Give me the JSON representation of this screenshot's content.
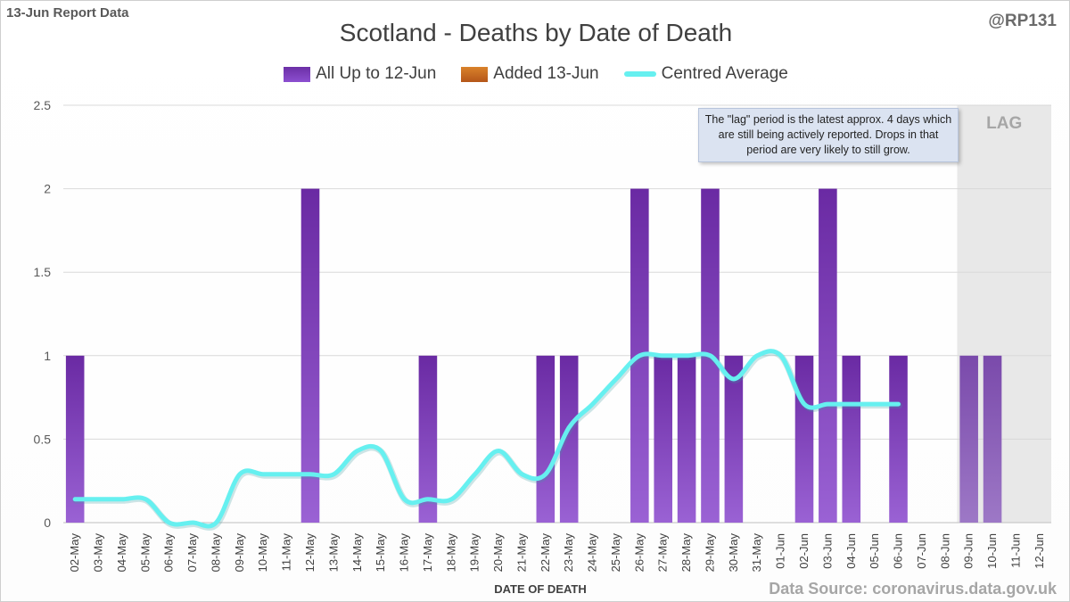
{
  "header": {
    "report_label": "13-Jun Report Data",
    "handle": "@RP131",
    "source": "Data Source: coronavirus.data.gov.uk"
  },
  "chart_data": {
    "type": "bar",
    "title": "Scotland - Deaths by Date of Death",
    "xlabel": "DATE OF DEATH",
    "ylabel": "",
    "ylim": [
      0,
      2.5
    ],
    "yticks": [
      0,
      0.5,
      1,
      1.5,
      2,
      2.5
    ],
    "ytick_labels": [
      "0",
      "0.5",
      "1",
      "1.5",
      "2",
      "2.5"
    ],
    "grid": true,
    "legend_position": "top-center",
    "categories": [
      "02-May",
      "03-May",
      "04-May",
      "05-May",
      "06-May",
      "07-May",
      "08-May",
      "09-May",
      "10-May",
      "11-May",
      "12-May",
      "13-May",
      "14-May",
      "15-May",
      "16-May",
      "17-May",
      "18-May",
      "19-May",
      "20-May",
      "21-May",
      "22-May",
      "23-May",
      "24-May",
      "25-May",
      "26-May",
      "27-May",
      "28-May",
      "29-May",
      "30-May",
      "31-May",
      "01-Jun",
      "02-Jun",
      "03-Jun",
      "04-Jun",
      "05-Jun",
      "06-Jun",
      "07-Jun",
      "08-Jun",
      "09-Jun",
      "10-Jun",
      "11-Jun",
      "12-Jun"
    ],
    "series": [
      {
        "name": "All Up to 12-Jun",
        "type": "bar",
        "color": "#7030a0",
        "values": [
          1,
          0,
          0,
          0,
          0,
          0,
          0,
          0,
          0,
          0,
          2,
          0,
          0,
          0,
          0,
          1,
          0,
          0,
          0,
          0,
          1,
          1,
          0,
          0,
          2,
          1,
          1,
          2,
          1,
          0,
          0,
          1,
          2,
          1,
          0,
          1,
          0,
          0,
          1,
          1,
          0,
          0
        ]
      },
      {
        "name": "Added 13-Jun",
        "type": "bar",
        "color": "#c55a11",
        "values": [
          0,
          0,
          0,
          0,
          0,
          0,
          0,
          0,
          0,
          0,
          0,
          0,
          0,
          0,
          0,
          0,
          0,
          0,
          0,
          0,
          0,
          0,
          0,
          0,
          0,
          0,
          0,
          0,
          0,
          0,
          0,
          0,
          0,
          0,
          0,
          0,
          0,
          0,
          0,
          0,
          0,
          0
        ]
      },
      {
        "name": "Centred Average",
        "type": "line",
        "color": "#66f0f0",
        "values": [
          0.14,
          0.14,
          0.14,
          0.14,
          0,
          0,
          0,
          0.29,
          0.29,
          0.29,
          0.29,
          0.29,
          0.43,
          0.43,
          0.14,
          0.14,
          0.14,
          0.29,
          0.43,
          0.29,
          0.29,
          0.57,
          0.71,
          0.86,
          1,
          1,
          1,
          1,
          0.86,
          1,
          1,
          0.71,
          0.71,
          0.71,
          0.71,
          0.71,
          null,
          null,
          null,
          null,
          null,
          null
        ]
      }
    ],
    "lag_label": "LAG",
    "lag_start": "09-Jun",
    "annotation": "The \"lag\" period is the latest approx. 4 days which are still being actively reported. Drops in that period are very likely to still grow."
  }
}
